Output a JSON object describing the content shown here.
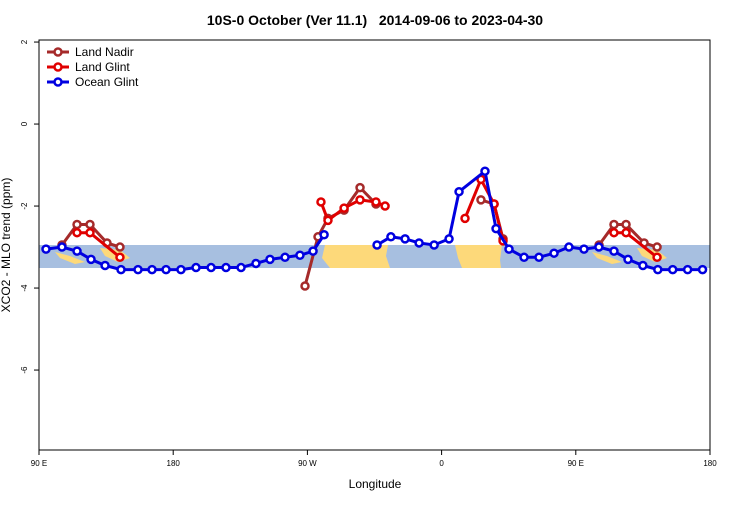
{
  "chart_data": {
    "type": "line",
    "title": "10S-0 October (Ver 11.1)   2014-09-06 to 2023-04-30",
    "x_label": "Longitude",
    "y_label": "XCO2 - MLO trend (ppm)",
    "xlim": [
      90,
      540
    ],
    "ylim": [
      -7.95,
      2.05
    ],
    "xticks": [
      {
        "value": 90,
        "label": "90 E"
      },
      180,
      {
        "value": 270,
        "label": "90 W"
      },
      {
        "value": 360,
        "label": "0"
      },
      {
        "value": 450,
        "label": "90 E"
      },
      {
        "value": 540,
        "label": "180"
      }
    ],
    "yticks": [
      2,
      0,
      -2,
      -4,
      -6
    ],
    "legend": "upper left",
    "series": [
      {
        "name": "Land Nadir",
        "color": "#a52a2a",
        "x": [
          105.4,
          115.5,
          124.2,
          135.6,
          144.3,
          null,
          268.4,
          277.1,
          283.8,
          294.6,
          305.3,
          316,
          null,
          386.4,
          395.2,
          401.2,
          null,
          465.6,
          475.6,
          483.7,
          495.8,
          504.5
        ],
        "values": [
          -2.95,
          -2.45,
          -2.45,
          -2.9,
          -3.0,
          null,
          -3.95,
          -2.75,
          -2.3,
          -2.1,
          -1.55,
          -1.95,
          null,
          -1.85,
          -1.95,
          -2.8,
          null,
          -2.95,
          -2.45,
          -2.45,
          -2.9,
          -3.0
        ]
      },
      {
        "name": "Land Glint",
        "color": "#e00000",
        "x": [
          115.5,
          124.2,
          144.3,
          null,
          279.1,
          283.8,
          294.6,
          305.3,
          316,
          322.1,
          null,
          375.7,
          386.4,
          395.2,
          401.2,
          null,
          475.6,
          483.7,
          504.5
        ],
        "values": [
          -2.65,
          -2.65,
          -3.25,
          null,
          -1.9,
          -2.35,
          -2.05,
          -1.85,
          -1.9,
          -2.0,
          null,
          -2.3,
          -1.35,
          -1.95,
          -2.85,
          null,
          -2.65,
          -2.65,
          -3.25
        ]
      },
      {
        "name": "Ocean Glint",
        "color": "#0000e0",
        "x": [
          94.7,
          105.4,
          115.5,
          124.9,
          134.3,
          145,
          156.4,
          165.8,
          175.2,
          185.2,
          195.3,
          205.4,
          215.4,
          225.5,
          235.5,
          244.9,
          255,
          265,
          273.8,
          281.2,
          null,
          316.7,
          326,
          335.5,
          344.9,
          355,
          365,
          371.7,
          389.1,
          396.5,
          405.2,
          415.3,
          425.3,
          435.4,
          445.4,
          455.5,
          465.5,
          475.6,
          485,
          495,
          505,
          515,
          525,
          535
        ],
        "values": [
          -3.05,
          -3.0,
          -3.1,
          -3.3,
          -3.45,
          -3.55,
          -3.55,
          -3.55,
          -3.55,
          -3.55,
          -3.5,
          -3.5,
          -3.5,
          -3.5,
          -3.4,
          -3.3,
          -3.25,
          -3.2,
          -3.1,
          -2.7,
          null,
          -2.95,
          -2.75,
          -2.8,
          -2.9,
          -2.95,
          -2.8,
          -1.65,
          -1.15,
          -2.55,
          -3.05,
          -3.25,
          -3.25,
          -3.15,
          -3.0,
          -3.05,
          -3.0,
          -3.1,
          -3.3,
          -3.45,
          -3.55,
          -3.55,
          -3.55,
          -3.55
        ]
      }
    ]
  }
}
